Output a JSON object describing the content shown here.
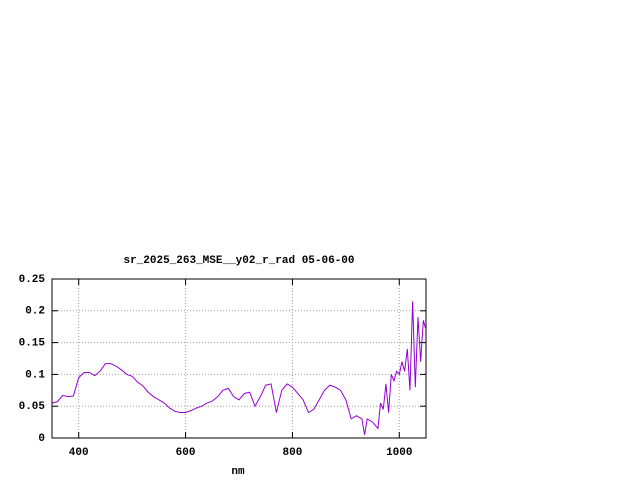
{
  "chart_data": {
    "type": "line",
    "title": "sr_2025_263_MSE__y02_r_rad 05-06-00",
    "xlabel": "nm",
    "xlim": [
      350,
      1050
    ],
    "ylim": [
      0,
      0.25
    ],
    "xticks": [
      400,
      600,
      800,
      1000
    ],
    "yticks": [
      0,
      0.05,
      0.1,
      0.15,
      0.2,
      0.25
    ],
    "grid": true,
    "series": [
      {
        "color": "#9400d3",
        "x": [
          350,
          360,
          370,
          380,
          390,
          400,
          410,
          420,
          430,
          440,
          450,
          460,
          470,
          480,
          490,
          500,
          510,
          520,
          530,
          540,
          550,
          560,
          570,
          580,
          590,
          600,
          610,
          620,
          630,
          640,
          650,
          660,
          670,
          680,
          690,
          700,
          710,
          720,
          730,
          740,
          750,
          760,
          770,
          780,
          790,
          800,
          810,
          820,
          830,
          840,
          850,
          860,
          870,
          880,
          890,
          900,
          910,
          920,
          930,
          935,
          940,
          950,
          960,
          965,
          970,
          975,
          980,
          985,
          990,
          995,
          1000,
          1005,
          1010,
          1015,
          1020,
          1025,
          1030,
          1035,
          1040,
          1045,
          1050
        ],
        "values": [
          0.055,
          0.057,
          0.067,
          0.065,
          0.066,
          0.095,
          0.103,
          0.103,
          0.098,
          0.105,
          0.117,
          0.117,
          0.113,
          0.107,
          0.1,
          0.097,
          0.088,
          0.082,
          0.072,
          0.065,
          0.06,
          0.055,
          0.047,
          0.042,
          0.04,
          0.04,
          0.043,
          0.047,
          0.05,
          0.055,
          0.058,
          0.065,
          0.075,
          0.078,
          0.065,
          0.06,
          0.07,
          0.072,
          0.05,
          0.065,
          0.083,
          0.085,
          0.04,
          0.075,
          0.085,
          0.08,
          0.07,
          0.06,
          0.04,
          0.045,
          0.06,
          0.075,
          0.083,
          0.08,
          0.075,
          0.06,
          0.03,
          0.035,
          0.03,
          0.005,
          0.03,
          0.025,
          0.015,
          0.055,
          0.045,
          0.085,
          0.04,
          0.1,
          0.09,
          0.105,
          0.1,
          0.12,
          0.105,
          0.14,
          0.075,
          0.215,
          0.08,
          0.19,
          0.12,
          0.185,
          0.17
        ]
      }
    ]
  }
}
